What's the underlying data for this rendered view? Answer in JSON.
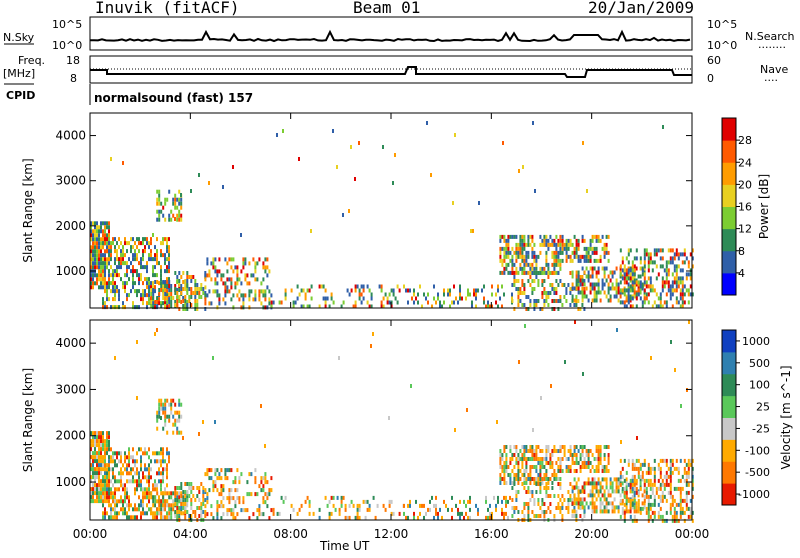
{
  "header": {
    "station": "Inuvik (fitACF)",
    "beam": "Beam 01",
    "date": "20/Jan/2009"
  },
  "panels": {
    "nsky": {
      "left_label": "N.Sky",
      "ticks_left": [
        "10^5",
        "10^0"
      ],
      "ticks_right": [
        "10^5",
        "10^0"
      ],
      "right_label": "N.Search",
      "right_line": "........"
    },
    "freq": {
      "left_label_1": "Freq.",
      "left_label_2": "[MHz]",
      "ticks_left": [
        "18",
        "8"
      ],
      "ticks_right": [
        "60",
        "0"
      ],
      "right_label": "Nave",
      "right_line": "....",
      "cpid_label": "CPID"
    },
    "cpid_text": "normalsound (fast) 157"
  },
  "chart_data": [
    {
      "type": "heatmap",
      "name": "power",
      "ylabel": "Slant Range [km]",
      "ylim": [
        180,
        4500
      ],
      "yticks": [
        "1000",
        "2000",
        "3000",
        "4000"
      ],
      "colorbar_label": "Power [dB]",
      "colorbar_ticks": [
        "4",
        "8",
        "12",
        "16",
        "20",
        "24",
        "28"
      ],
      "colors": [
        "#0000ff",
        "#2f5fa8",
        "#2e8b57",
        "#7ccd32",
        "#e8d020",
        "#ff9c00",
        "#ff5a00",
        "#e00000"
      ]
    },
    {
      "type": "heatmap",
      "name": "velocity",
      "ylabel": "Slant Range [km]",
      "ylim": [
        180,
        4500
      ],
      "yticks": [
        "1000",
        "2000",
        "3000",
        "4000"
      ],
      "colorbar_label": "Velocity [m s^-1]",
      "colorbar_ticks": [
        "1000",
        "500",
        "100",
        "25",
        "-25",
        "-100",
        "-500",
        "-1000"
      ],
      "colors": [
        "#1040c0",
        "#2f80b0",
        "#2e8b57",
        "#5ac85a",
        "#c8c8c8",
        "#ffaa00",
        "#ff7800",
        "#e81a00"
      ]
    }
  ],
  "xaxis": {
    "label": "Time UT",
    "ticks": [
      "00:00",
      "04:00",
      "08:00",
      "12:00",
      "16:00",
      "20:00",
      "00:00"
    ]
  },
  "coverage": [
    [
      0.0,
      0.03,
      600,
      2100,
      0.9
    ],
    [
      0.02,
      0.13,
      200,
      1750,
      0.5
    ],
    [
      0.1,
      0.16,
      200,
      800,
      0.55
    ],
    [
      0.11,
      0.15,
      2100,
      2800,
      0.5
    ],
    [
      0.14,
      0.19,
      200,
      1000,
      0.45
    ],
    [
      0.19,
      0.3,
      200,
      1300,
      0.35
    ],
    [
      0.3,
      0.52,
      200,
      700,
      0.2
    ],
    [
      0.52,
      0.7,
      200,
      700,
      0.25
    ],
    [
      0.68,
      0.78,
      950,
      1800,
      0.6
    ],
    [
      0.7,
      0.82,
      200,
      1000,
      0.35
    ],
    [
      0.78,
      0.86,
      1200,
      1800,
      0.55
    ],
    [
      0.8,
      0.92,
      350,
      1100,
      0.5
    ],
    [
      0.88,
      1.0,
      200,
      1500,
      0.45
    ],
    [
      0.0,
      1.0,
      1800,
      4500,
      0.004
    ]
  ]
}
